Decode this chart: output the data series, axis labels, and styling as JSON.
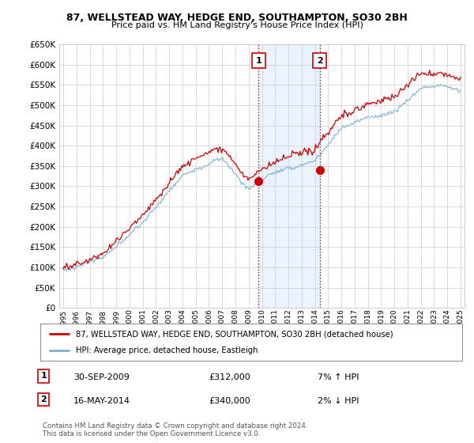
{
  "title": "87, WELLSTEAD WAY, HEDGE END, SOUTHAMPTON, SO30 2BH",
  "subtitle": "Price paid vs. HM Land Registry's House Price Index (HPI)",
  "legend_line1": "87, WELLSTEAD WAY, HEDGE END, SOUTHAMPTON, SO30 2BH (detached house)",
  "legend_line2": "HPI: Average price, detached house, Eastleigh",
  "sale1_date": "30-SEP-2009",
  "sale1_price": 312000,
  "sale1_label": "7% ↑ HPI",
  "sale2_date": "16-MAY-2014",
  "sale2_price": 340000,
  "sale2_label": "2% ↓ HPI",
  "footnote1": "Contains HM Land Registry data © Crown copyright and database right 2024.",
  "footnote2": "This data is licensed under the Open Government Licence v3.0.",
  "ylim": [
    0,
    650000
  ],
  "ytick_step": 50000,
  "x_start_year": 1995,
  "x_end_year": 2025,
  "sale1_x": 2009.75,
  "sale2_x": 2014.37,
  "red_color": "#cc0000",
  "blue_color": "#7ab0d4",
  "background_color": "#ffffff",
  "grid_color": "#cccccc",
  "shade_color": "#ddeeff",
  "hatch_color": "#bbccdd"
}
